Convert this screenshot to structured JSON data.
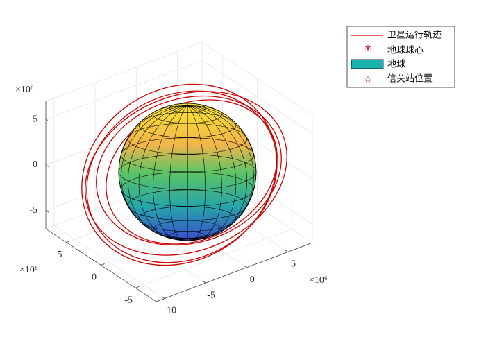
{
  "chart_data": {
    "type": "surface3d",
    "legend": [
      "卫星运行轨迹",
      "地球球心",
      "地球",
      "信关站位置"
    ],
    "legend_position": "northeast",
    "xlim": [
      -11,
      8
    ],
    "ylim": [
      -8,
      8
    ],
    "zlim": [
      -7,
      7
    ],
    "xticks": [
      -10,
      -5,
      0,
      5
    ],
    "yticks": [
      -5,
      0,
      5
    ],
    "zticks": [
      -5,
      0,
      5
    ],
    "x_exponent": "×10⁶",
    "y_exponent": "×10⁶",
    "z_exponent": "×10⁶",
    "grid": true,
    "orbit_color": "#cc0000"
  }
}
